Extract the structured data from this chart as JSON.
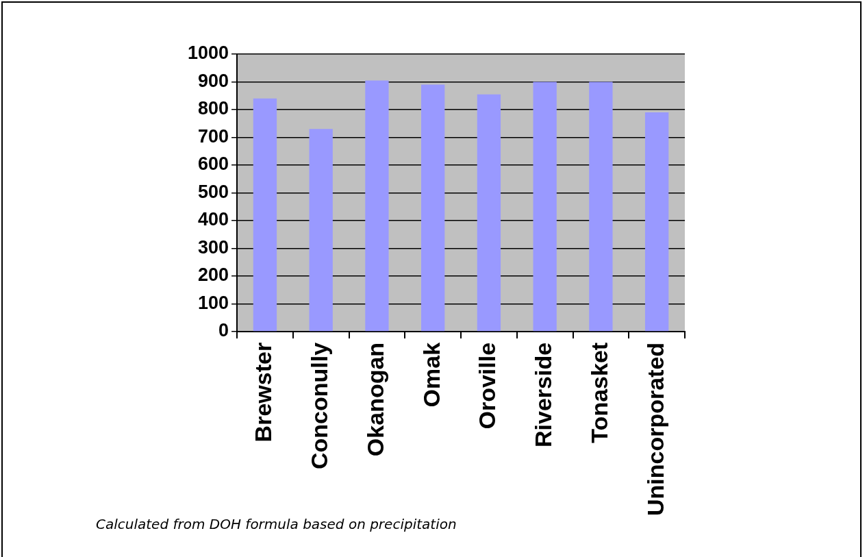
{
  "chart_data": {
    "type": "bar",
    "categories": [
      "Brewster",
      "Conconully",
      "Okanogan",
      "Omak",
      "Oroville",
      "Riverside",
      "Tonasket",
      "Unincorporated"
    ],
    "values": [
      840,
      730,
      905,
      890,
      855,
      900,
      900,
      790
    ],
    "color": "#9999ff",
    "ylim": [
      0,
      1000
    ],
    "yticks": [
      0,
      100,
      200,
      300,
      400,
      500,
      600,
      700,
      800,
      900,
      1000
    ],
    "grid": "y",
    "legend": false,
    "annotations": [
      "Calculated from DOH formula based on precipitation"
    ]
  }
}
